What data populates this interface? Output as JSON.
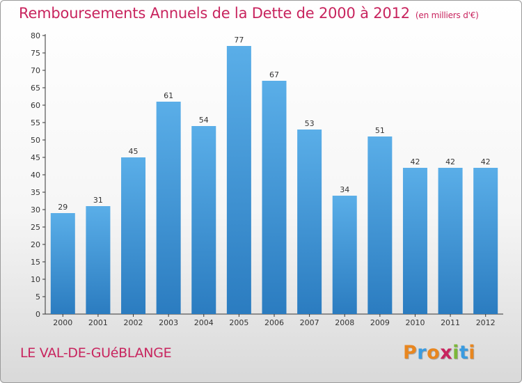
{
  "chart_data": {
    "type": "bar",
    "title": "Remboursements Annuels de la Dette de 2000 à 2012",
    "unit": "(en milliers d'€)",
    "categories": [
      "2000",
      "2001",
      "2002",
      "2003",
      "2004",
      "2005",
      "2006",
      "2007",
      "2008",
      "2009",
      "2010",
      "2011",
      "2012"
    ],
    "values": [
      29,
      31,
      45,
      61,
      54,
      77,
      67,
      53,
      34,
      51,
      42,
      42,
      42
    ],
    "ylim": [
      0,
      80
    ],
    "yticks": [
      0,
      5,
      10,
      15,
      20,
      25,
      30,
      35,
      40,
      45,
      50,
      55,
      60,
      65,
      70,
      75,
      80
    ],
    "grid": false,
    "bar_color_top": "#5aaee8",
    "bar_color_bottom": "#2b7cc0"
  },
  "footer": {
    "commune": "LE VAL-DE-GUéBLANGE",
    "logo": [
      "P",
      "r",
      "o",
      "x",
      "i",
      "t",
      "i"
    ],
    "logo_colors": [
      "#e8861f",
      "#3a9be0",
      "#e8861f",
      "#c8245e",
      "#7cb83a",
      "#3a9be0",
      "#e8861f"
    ]
  },
  "colors": {
    "title": "#c8245e"
  }
}
